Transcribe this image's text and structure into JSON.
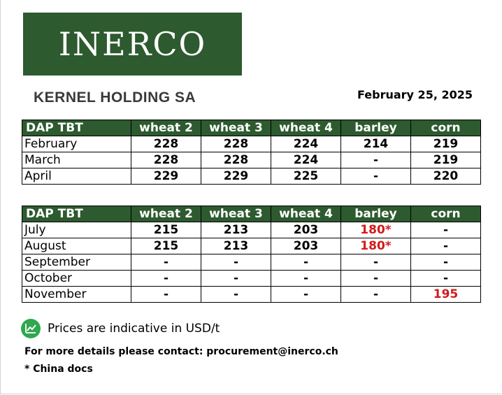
{
  "logo": {
    "text": "INERCO"
  },
  "company": "KERNEL HOLDING SA",
  "date": "February 25, 2025",
  "colors": {
    "header_green": "#2d5a2f",
    "highlight_red": "#d11a1a",
    "icon_green": "#2fa84f"
  },
  "table1": {
    "headers": [
      "DAP TBT",
      "wheat 2",
      "wheat 3",
      "wheat 4",
      "barley",
      "corn"
    ],
    "rows": [
      {
        "month": "February",
        "values": [
          "228",
          "228",
          "224",
          "214",
          "219"
        ]
      },
      {
        "month": "March",
        "values": [
          "228",
          "228",
          "224",
          "-",
          "219"
        ]
      },
      {
        "month": "April",
        "values": [
          "229",
          "229",
          "225",
          "-",
          "220"
        ]
      }
    ]
  },
  "table2": {
    "headers": [
      "DAP TBT",
      "wheat 2",
      "wheat 3",
      "wheat 4",
      "barley",
      "corn"
    ],
    "rows": [
      {
        "month": "July",
        "values": [
          "215",
          "213",
          "203",
          "180*",
          "-"
        ]
      },
      {
        "month": "August",
        "values": [
          "215",
          "213",
          "203",
          "180*",
          "-"
        ]
      },
      {
        "month": "September",
        "values": [
          "-",
          "-",
          "-",
          "-",
          "-"
        ]
      },
      {
        "month": "October",
        "values": [
          "-",
          "-",
          "-",
          "-",
          "-"
        ]
      },
      {
        "month": "November",
        "values": [
          "-",
          "-",
          "-",
          "-",
          "195"
        ]
      }
    ]
  },
  "indicative": {
    "icon": "chart-line-icon",
    "text": "Prices are indicative in USD/t"
  },
  "contact": "For more details please contact: procurement@inerco.ch",
  "footnote": "* China docs"
}
